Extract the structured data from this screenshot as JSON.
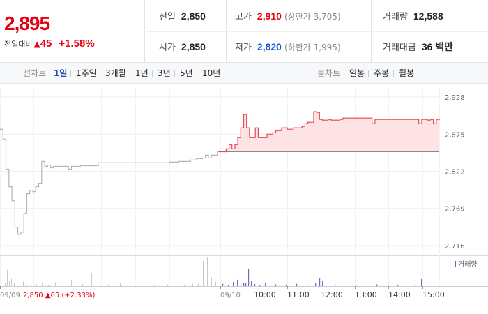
{
  "quote": {
    "price": "2,895",
    "change_label": "전일대비",
    "change_symbol": "▲",
    "change_amount": "45",
    "change_percent": "+1.58%",
    "prev_close": {
      "label": "전일",
      "value": "2,850"
    },
    "open": {
      "label": "시가",
      "value": "2,850"
    },
    "high": {
      "label": "고가",
      "value": "2,910",
      "note": "(상한가 3,705)"
    },
    "low": {
      "label": "저가",
      "value": "2,820",
      "note": "(하한가 1,995)"
    },
    "volume": {
      "label": "거래량",
      "value": "12,588"
    },
    "amount": {
      "label": "거래대금",
      "value": "36 백만"
    },
    "colors": {
      "up": "#e60012",
      "down": "#1a5acb"
    }
  },
  "tabs": {
    "line_label": "선차트",
    "line": [
      "1일",
      "1주일",
      "3개월",
      "1년",
      "3년",
      "5년",
      "10년"
    ],
    "line_active": "1일",
    "candle_label": "봉차트",
    "candle": [
      "일봉",
      "주봉",
      "월봉"
    ]
  },
  "chart_data": {
    "type": "line",
    "y_ticks": [
      "2,928",
      "2,875",
      "2,822",
      "2,769",
      "2,716"
    ],
    "y_tick_values": [
      2928,
      2875,
      2822,
      2769,
      2716
    ],
    "ylim": [
      2703,
      2941
    ],
    "reference_line": 2850,
    "x_ticks": [
      "09/09",
      "09/10",
      "10:00",
      "11:00",
      "12:00",
      "13:00",
      "14:00",
      "15:00"
    ],
    "prev_day_note": {
      "date": "09/09",
      "price": "2,850",
      "symbol": "▲",
      "change": "65",
      "percent": "(+2.33%)"
    },
    "volume_legend": "거래량",
    "grid": true,
    "colors": {
      "prev_day_line": "#b5b5b5",
      "today_up_line": "#e8474f",
      "fill": "#fde3e4",
      "reference": "#7a7a7a",
      "today_start": "#2f60c9",
      "volume_bar": "#7b68c6"
    },
    "series": [
      {
        "values": [
          2882,
          2868,
          2825,
          2800,
          2780,
          2742,
          2732,
          2735,
          2762,
          2790,
          2795,
          2793,
          2800,
          2805,
          2836,
          2829,
          2831,
          2827,
          2829,
          2829,
          2829,
          2829,
          2829,
          2825,
          2829,
          2829,
          2829,
          2830,
          2830,
          2830,
          2830,
          2830,
          2830,
          2834,
          2834,
          2834,
          2834,
          2834,
          2834,
          2834,
          2834,
          2834,
          2834,
          2834,
          2834,
          2834,
          2834,
          2834,
          2834,
          2834,
          2834,
          2834,
          2834,
          2834,
          2834,
          2834,
          2834,
          2835,
          2835,
          2835,
          2836,
          2836,
          2836,
          2836,
          2838,
          2838,
          2840,
          2840,
          2841,
          2845,
          2841,
          2845,
          2845,
          2850,
          2850
        ]
      },
      {
        "values": [
          2850,
          2850,
          2854,
          2860,
          2854,
          2860,
          2870,
          2884,
          2903,
          2884,
          2870,
          2870,
          2884,
          2870,
          2870,
          2870,
          2875,
          2875,
          2877,
          2880,
          2880,
          2884,
          2884,
          2882,
          2882,
          2884,
          2884,
          2884,
          2886,
          2890,
          2892,
          2892,
          2907,
          2906,
          2896,
          2895,
          2895,
          2896,
          2895,
          2895,
          2895,
          2896,
          2898,
          2898,
          2898,
          2898,
          2898,
          2898,
          2898,
          2898,
          2898,
          2898,
          2890,
          2896,
          2896,
          2896,
          2896,
          2896,
          2896,
          2896,
          2896,
          2896,
          2896,
          2896,
          2896,
          2896,
          2896,
          2896,
          2890,
          2896,
          2896,
          2895,
          2896,
          2890,
          2896,
          2895
        ]
      }
    ],
    "volume_prev_day": [
      [
        1,
        0.92
      ],
      [
        4,
        0.35
      ],
      [
        7,
        0.12
      ],
      [
        10,
        0.55
      ],
      [
        13,
        0.18
      ],
      [
        16,
        0.25
      ],
      [
        20,
        0.1
      ],
      [
        24,
        0.3
      ],
      [
        28,
        0.08
      ],
      [
        33,
        0.16
      ],
      [
        38,
        0.05
      ],
      [
        44,
        0.1
      ],
      [
        52,
        0.06
      ],
      [
        60,
        0.12
      ],
      [
        69,
        0.04
      ],
      [
        79,
        0.14
      ],
      [
        90,
        0.05
      ],
      [
        102,
        0.22
      ],
      [
        118,
        0.08
      ],
      [
        131,
        0.45
      ],
      [
        140,
        0.06
      ],
      [
        155,
        0.06
      ],
      [
        172,
        0.1
      ],
      [
        186,
        0.05
      ],
      [
        203,
        0.07
      ],
      [
        221,
        0.05
      ],
      [
        240,
        0.06
      ],
      [
        252,
        0.09
      ],
      [
        264,
        0.05
      ],
      [
        276,
        0.08
      ],
      [
        284,
        0.08
      ],
      [
        291,
        0.85
      ],
      [
        297,
        0.98
      ],
      [
        303,
        0.3
      ],
      [
        309,
        0.15
      ]
    ],
    "volume_today": [
      [
        319,
        0.08
      ],
      [
        327,
        0.05
      ],
      [
        334,
        0.14
      ],
      [
        340,
        0.22
      ],
      [
        345,
        0.12
      ],
      [
        349,
        0.1
      ],
      [
        352,
        0.12
      ],
      [
        356,
        0.58
      ],
      [
        360,
        0.18
      ],
      [
        365,
        0.07
      ],
      [
        372,
        0.05
      ],
      [
        380,
        0.1
      ],
      [
        395,
        0.06
      ],
      [
        410,
        0.05
      ],
      [
        425,
        0.08
      ],
      [
        440,
        0.05
      ],
      [
        452,
        0.12
      ],
      [
        458,
        0.26
      ],
      [
        462,
        0.18
      ],
      [
        480,
        0.07
      ],
      [
        510,
        0.06
      ],
      [
        540,
        0.06
      ],
      [
        570,
        0.05
      ],
      [
        595,
        0.06
      ],
      [
        604,
        0.24
      ]
    ]
  }
}
